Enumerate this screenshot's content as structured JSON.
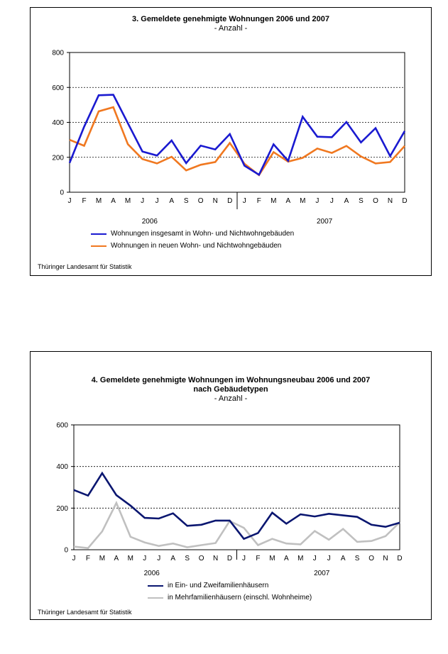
{
  "chart_data": [
    {
      "type": "line",
      "title": "3. Gemeldete genehmigte Wohnungen 2006 und 2007",
      "subtitle": "- Anzahl -",
      "categories": [
        "J",
        "F",
        "M",
        "A",
        "M",
        "J",
        "J",
        "A",
        "S",
        "O",
        "N",
        "D",
        "J",
        "F",
        "M",
        "A",
        "M",
        "J",
        "J",
        "A",
        "S",
        "O",
        "N",
        "D"
      ],
      "years": [
        "2006",
        "2007"
      ],
      "ylim": [
        0,
        800
      ],
      "yticks": [
        "0",
        "200",
        "400",
        "600",
        "800"
      ],
      "grid": true,
      "series": [
        {
          "name": "Wohnungen insgesamt in Wohn- und Nichtwohngebäuden",
          "color": "#1a1ad0",
          "values": [
            168,
            375,
            555,
            558,
            395,
            233,
            210,
            296,
            167,
            267,
            245,
            333,
            152,
            100,
            274,
            180,
            432,
            318,
            315,
            402,
            285,
            367,
            207,
            350
          ]
        },
        {
          "name": "Wohnungen in neuen Wohn- und Nichtwohngebäuden",
          "color": "#f07820",
          "values": [
            300,
            266,
            463,
            487,
            275,
            190,
            165,
            203,
            125,
            157,
            173,
            282,
            163,
            98,
            230,
            175,
            197,
            250,
            225,
            265,
            205,
            165,
            173,
            265
          ]
        }
      ],
      "source": "Thüringer Landesamt für Statistik"
    },
    {
      "type": "line",
      "title": "4. Gemeldete genehmigte Wohnungen im Wohnungsneubau 2006 und 2007",
      "title2": "nach Gebäudetypen",
      "subtitle": "- Anzahl -",
      "categories": [
        "J",
        "F",
        "M",
        "A",
        "M",
        "J",
        "J",
        "A",
        "S",
        "O",
        "N",
        "D",
        "J",
        "F",
        "M",
        "A",
        "M",
        "J",
        "J",
        "A",
        "S",
        "O",
        "N",
        "D"
      ],
      "years": [
        "2006",
        "2007"
      ],
      "ylim": [
        0,
        600
      ],
      "yticks": [
        "0",
        "200",
        "400",
        "600"
      ],
      "grid": true,
      "series": [
        {
          "name": "in Ein- und Zweifamilienhäusern",
          "color": "#0a1670",
          "values": [
            287,
            260,
            368,
            262,
            212,
            153,
            150,
            175,
            115,
            120,
            140,
            140,
            52,
            80,
            178,
            125,
            170,
            160,
            173,
            165,
            158,
            120,
            110,
            130
          ]
        },
        {
          "name": "in Mehrfamilienhäusern (einschl. Wohnheime)",
          "color": "#c0c0c0",
          "values": [
            15,
            8,
            88,
            225,
            62,
            35,
            18,
            30,
            12,
            22,
            32,
            138,
            105,
            22,
            52,
            30,
            26,
            90,
            48,
            100,
            38,
            42,
            65,
            132
          ]
        }
      ],
      "source": "Thüringer Landesamt für Statistik"
    }
  ]
}
